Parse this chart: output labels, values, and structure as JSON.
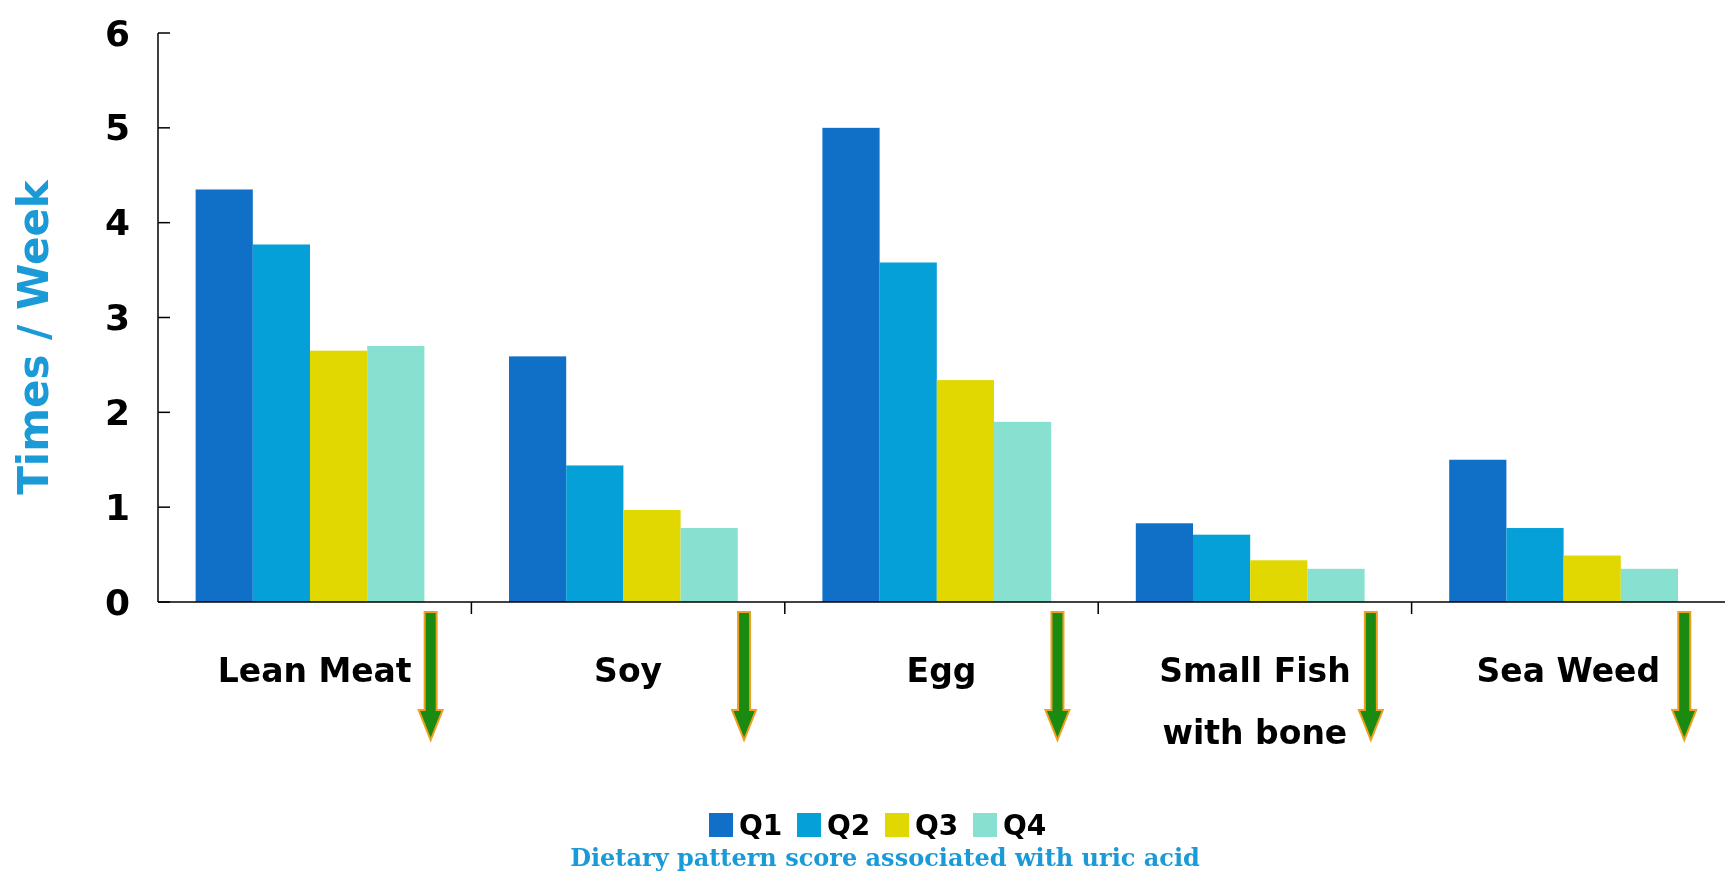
{
  "chart_data": {
    "type": "bar",
    "ylabel": "Times / Week",
    "categories": [
      "Lean Meat",
      "Soy",
      "Egg",
      "Small Fish with bone",
      "Sea Weed"
    ],
    "series": [
      {
        "name": "Q1",
        "color": "#1070c8",
        "values": [
          4.35,
          2.59,
          5.0,
          0.83,
          1.5
        ]
      },
      {
        "name": "Q2",
        "color": "#05a0d8",
        "values": [
          3.77,
          1.44,
          3.58,
          0.71,
          0.78
        ]
      },
      {
        "name": "Q3",
        "color": "#e0d800",
        "values": [
          2.65,
          0.97,
          2.34,
          0.44,
          0.49
        ]
      },
      {
        "name": "Q4",
        "color": "#88e0d0",
        "values": [
          2.7,
          0.78,
          1.9,
          0.35,
          0.35
        ]
      }
    ],
    "ylim": [
      0,
      6
    ],
    "yticks": [
      0,
      1,
      2,
      3,
      4,
      5,
      6
    ],
    "grid": false,
    "legend": "bottom",
    "annotations": [
      "Dietary pattern score associated with uric acid"
    ]
  }
}
